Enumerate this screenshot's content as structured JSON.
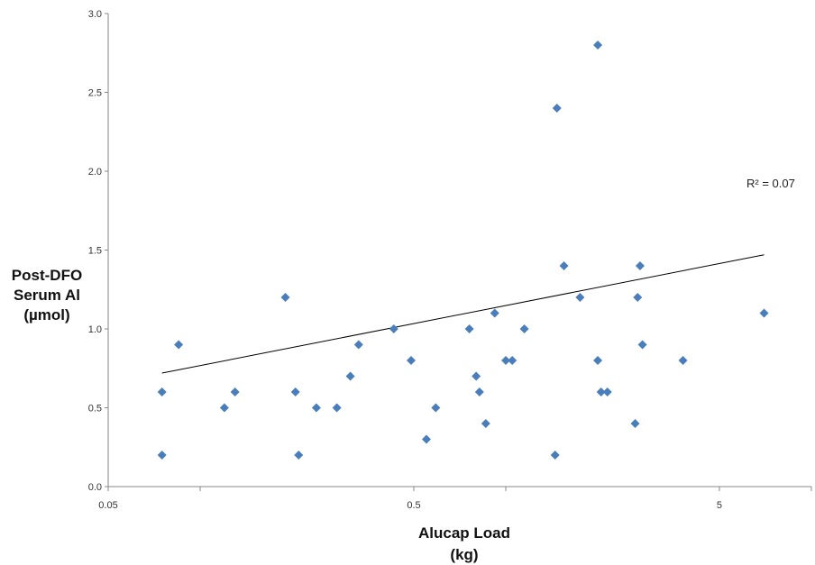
{
  "chart_data": {
    "type": "scatter",
    "title": "",
    "xlabel_lines": [
      "Alucap Load",
      "(kg)"
    ],
    "ylabel_lines": [
      "Post-DFO",
      "Serum Al",
      "(µmol)"
    ],
    "x_scale": "log",
    "xlim": [
      0.05,
      10
    ],
    "x_ticks": [
      0.05,
      0.5,
      5
    ],
    "x_tick_labels": [
      "0.05",
      "0.5",
      "5"
    ],
    "ylim": [
      0,
      3
    ],
    "y_ticks": [
      0,
      0.5,
      1,
      1.5,
      2,
      2.5,
      3
    ],
    "y_tick_labels": [
      "0.0",
      "0.5",
      "1.0",
      "1.5",
      "2.0",
      "2.5",
      "3.0"
    ],
    "grid": false,
    "legend": "none",
    "marker_color": "#4a7ebb",
    "trendline": {
      "x": [
        0.075,
        7.0
      ],
      "y": [
        0.72,
        1.47
      ],
      "color": "#000000"
    },
    "annotation": "R² = 0.07",
    "points": [
      {
        "x": 0.075,
        "y": 0.6
      },
      {
        "x": 0.075,
        "y": 0.2
      },
      {
        "x": 0.085,
        "y": 0.9
      },
      {
        "x": 0.12,
        "y": 0.5
      },
      {
        "x": 0.13,
        "y": 0.6
      },
      {
        "x": 0.19,
        "y": 1.2
      },
      {
        "x": 0.205,
        "y": 0.6
      },
      {
        "x": 0.21,
        "y": 0.2
      },
      {
        "x": 0.24,
        "y": 0.5
      },
      {
        "x": 0.28,
        "y": 0.5
      },
      {
        "x": 0.31,
        "y": 0.7
      },
      {
        "x": 0.33,
        "y": 0.9
      },
      {
        "x": 0.43,
        "y": 1.0
      },
      {
        "x": 0.49,
        "y": 0.8
      },
      {
        "x": 0.55,
        "y": 0.3
      },
      {
        "x": 0.59,
        "y": 0.5
      },
      {
        "x": 0.76,
        "y": 1.0
      },
      {
        "x": 0.8,
        "y": 0.7
      },
      {
        "x": 0.82,
        "y": 0.6
      },
      {
        "x": 0.86,
        "y": 0.4
      },
      {
        "x": 0.92,
        "y": 1.1
      },
      {
        "x": 1.0,
        "y": 0.8
      },
      {
        "x": 1.05,
        "y": 0.8
      },
      {
        "x": 1.15,
        "y": 1.0
      },
      {
        "x": 1.45,
        "y": 0.2
      },
      {
        "x": 1.47,
        "y": 2.4
      },
      {
        "x": 1.55,
        "y": 1.4
      },
      {
        "x": 1.75,
        "y": 1.2
      },
      {
        "x": 2.0,
        "y": 0.8
      },
      {
        "x": 2.0,
        "y": 2.8
      },
      {
        "x": 2.05,
        "y": 0.6
      },
      {
        "x": 2.15,
        "y": 0.6
      },
      {
        "x": 2.65,
        "y": 0.4
      },
      {
        "x": 2.7,
        "y": 1.2
      },
      {
        "x": 2.75,
        "y": 1.4
      },
      {
        "x": 2.8,
        "y": 0.9
      },
      {
        "x": 3.8,
        "y": 0.8
      },
      {
        "x": 7.0,
        "y": 1.1
      }
    ]
  }
}
